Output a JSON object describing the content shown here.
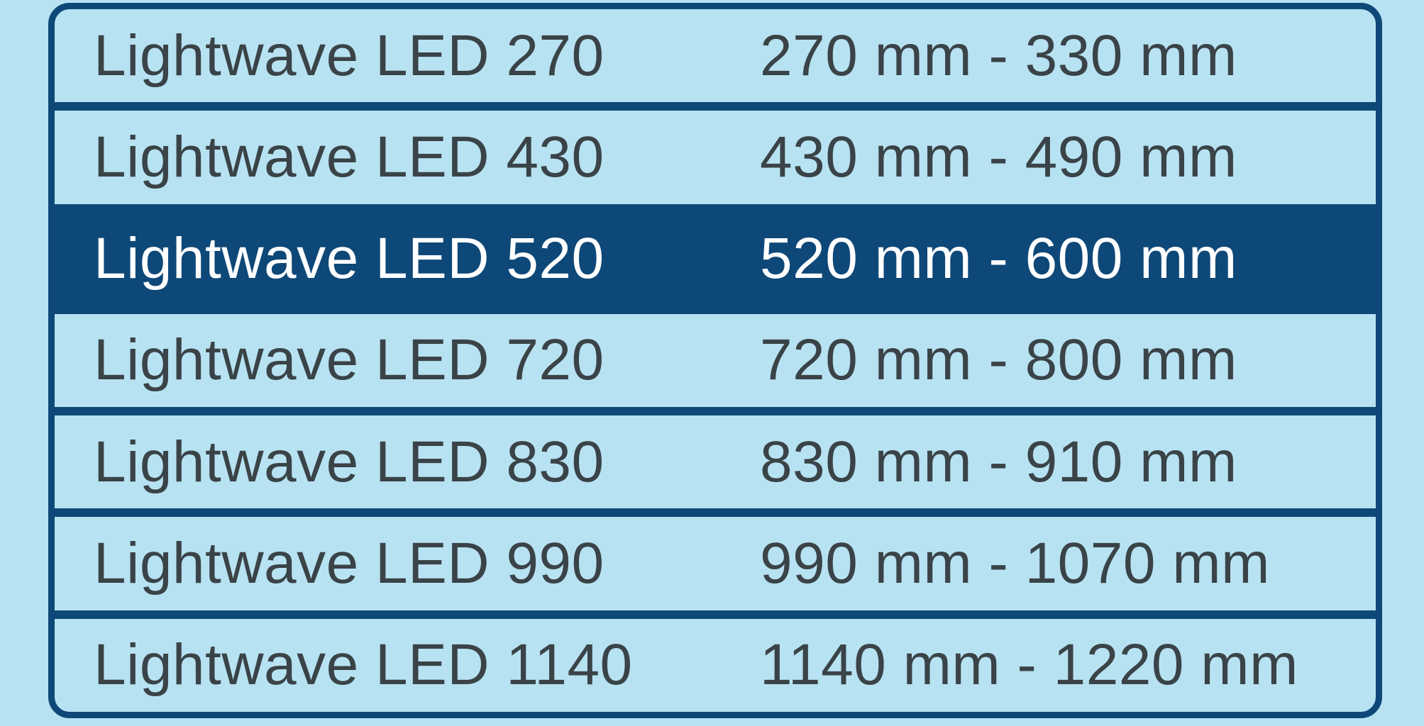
{
  "colors": {
    "background": "#b7e2f2",
    "navy": "#0e4878",
    "row_text": "#3a4347",
    "selected_text": "#ffffff"
  },
  "list": {
    "items": [
      {
        "name": "Lightwave LED 270",
        "range": "270 mm - 330 mm",
        "selected": false
      },
      {
        "name": "Lightwave LED 430",
        "range": "430 mm - 490 mm",
        "selected": false
      },
      {
        "name": "Lightwave LED 520",
        "range": "520 mm - 600 mm",
        "selected": true
      },
      {
        "name": "Lightwave LED 720",
        "range": "720 mm - 800 mm",
        "selected": false
      },
      {
        "name": "Lightwave LED 830",
        "range": "830 mm - 910 mm",
        "selected": false
      },
      {
        "name": "Lightwave LED 990",
        "range": "990 mm - 1070 mm",
        "selected": false
      },
      {
        "name": "Lightwave LED 1140",
        "range": "1140 mm - 1220 mm",
        "selected": false
      }
    ]
  }
}
